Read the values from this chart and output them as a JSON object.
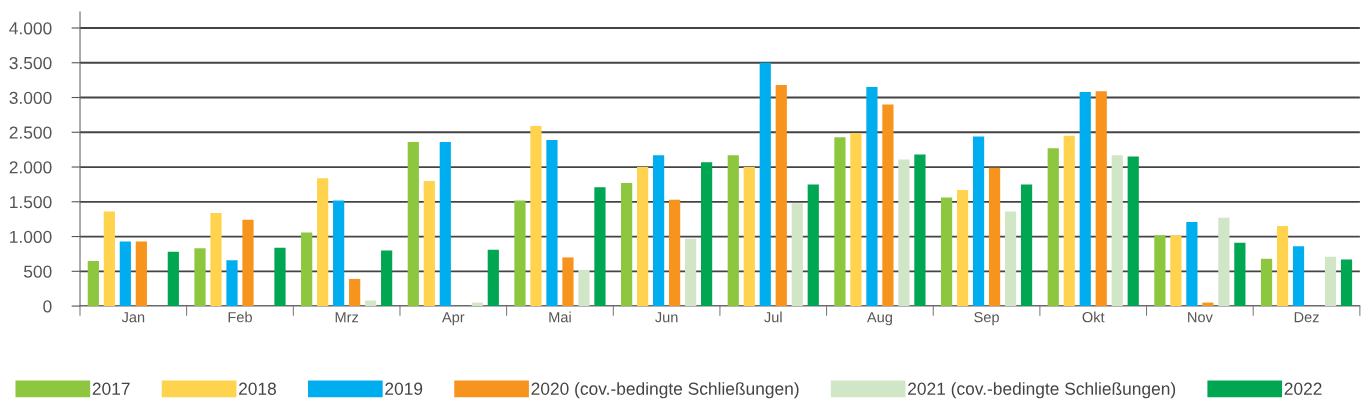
{
  "chart_data": {
    "type": "bar",
    "categories": [
      "Jan",
      "Feb",
      "Mrz",
      "Apr",
      "Mai",
      "Jun",
      "Jul",
      "Aug",
      "Sep",
      "Okt",
      "Nov",
      "Dez"
    ],
    "series": [
      {
        "name": "2017",
        "color": "#8dc63f",
        "values": [
          650,
          830,
          1060,
          2360,
          1520,
          1770,
          2170,
          2430,
          1560,
          2270,
          1020,
          680
        ]
      },
      {
        "name": "2018",
        "color": "#ffd34e",
        "values": [
          1360,
          1340,
          1840,
          1800,
          2590,
          2000,
          2000,
          2490,
          1670,
          2450,
          1020,
          1150
        ]
      },
      {
        "name": "2019",
        "color": "#00aeef",
        "values": [
          930,
          660,
          1520,
          2360,
          2390,
          2170,
          3500,
          3150,
          2440,
          3080,
          1210,
          860
        ]
      },
      {
        "name": "2020 (cov.-bedingte Schließungen)",
        "color": "#f7941d",
        "values": [
          930,
          1240,
          390,
          null,
          700,
          1530,
          3180,
          2900,
          1990,
          3090,
          50,
          null
        ]
      },
      {
        "name": "2021 (cov.-bedingte Schließungen)",
        "color": "#d0e6c6",
        "values": [
          null,
          null,
          80,
          50,
          520,
          970,
          1480,
          2110,
          1360,
          2170,
          1270,
          710
        ]
      },
      {
        "name": "2022",
        "color": "#00a651",
        "values": [
          780,
          840,
          800,
          810,
          1710,
          2070,
          1750,
          2180,
          1750,
          2150,
          910,
          670
        ]
      }
    ],
    "ylim": [
      0,
      4230
    ],
    "yticks": [
      0,
      {
        "value": 500,
        "label": "500"
      },
      {
        "value": 1000,
        "label": "1.000"
      },
      {
        "value": 1500,
        "label": "1.500"
      },
      {
        "value": 2000,
        "label": "2.000"
      },
      {
        "value": 2500,
        "label": "2.500"
      },
      {
        "value": 3000,
        "label": "3.000"
      },
      {
        "value": 3500,
        "label": "3.500"
      },
      {
        "value": 4000,
        "label": "4.000"
      }
    ],
    "grid": "y",
    "legend": "bottom"
  }
}
